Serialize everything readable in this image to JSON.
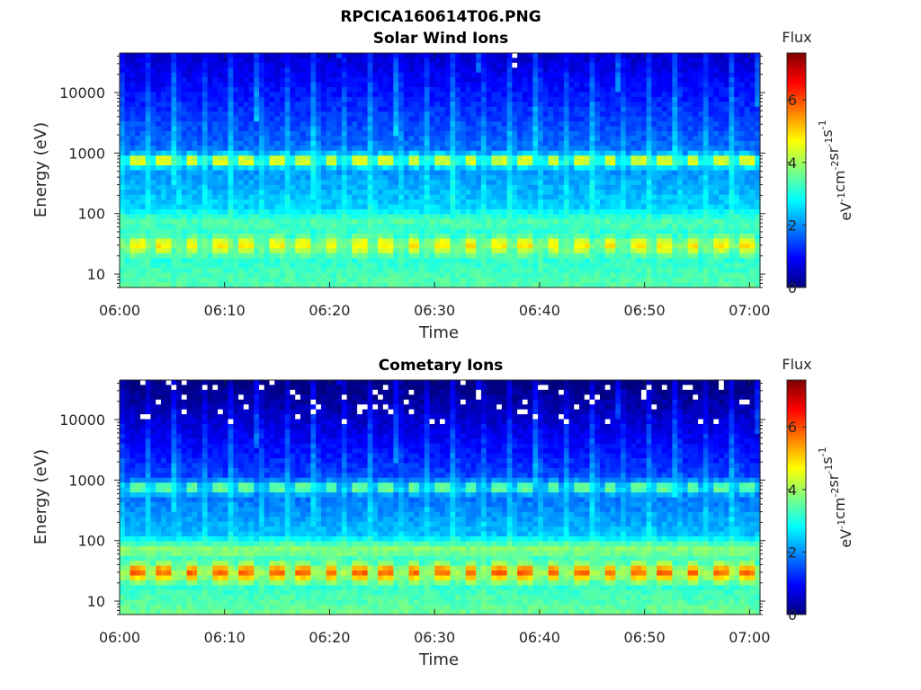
{
  "figure": {
    "title": "RPCICA160614T06.PNG"
  },
  "colormap": {
    "name": "jet",
    "stops": [
      "#00007f",
      "#0000ff",
      "#007fff",
      "#00ffff",
      "#7fff7f",
      "#ffff00",
      "#ff7f00",
      "#ff0000",
      "#7f0000"
    ]
  },
  "chart_data": [
    {
      "type": "heatmap",
      "title": "Solar Wind Ions",
      "xlabel": "Time",
      "ylabel": "Energy (eV)",
      "x_range": [
        "06:00",
        "07:01"
      ],
      "x_ticks": [
        "06:00",
        "06:10",
        "06:20",
        "06:30",
        "06:40",
        "06:50",
        "07:00"
      ],
      "y_scale": "log",
      "y_range": [
        6,
        45000
      ],
      "y_ticks": [
        "10",
        "100",
        "1000",
        "10000"
      ],
      "colorbar": {
        "title": "Flux",
        "label": "eV-1cm-2sr-1s-1",
        "range": [
          0,
          7.5
        ],
        "ticks": [
          "0",
          "2",
          "4",
          "6"
        ]
      },
      "n_sweeps": 23,
      "features": [
        {
          "energy_eV": 750,
          "flux": 4.8
        },
        {
          "energy_eV": 30,
          "flux": 4.8
        },
        {
          "energy_eV": 70,
          "flux": 3.4
        }
      ]
    },
    {
      "type": "heatmap",
      "title": "Cometary Ions",
      "xlabel": "Time",
      "ylabel": "Energy (eV)",
      "x_range": [
        "06:00",
        "07:01"
      ],
      "x_ticks": [
        "06:00",
        "06:10",
        "06:20",
        "06:30",
        "06:40",
        "06:50",
        "07:00"
      ],
      "y_scale": "log",
      "y_range": [
        6,
        45000
      ],
      "y_ticks": [
        "10",
        "100",
        "1000",
        "10000"
      ],
      "colorbar": {
        "title": "Flux",
        "label": "eV-1cm-2sr-1s-1",
        "range": [
          0,
          7.5
        ],
        "ticks": [
          "0",
          "2",
          "4",
          "6"
        ]
      },
      "n_sweeps": 23,
      "features": [
        {
          "energy_eV": 30,
          "flux": 5.8
        },
        {
          "energy_eV": 750,
          "flux": 3.8
        },
        {
          "energy_eV": 70,
          "flux": 3.8
        }
      ]
    }
  ]
}
